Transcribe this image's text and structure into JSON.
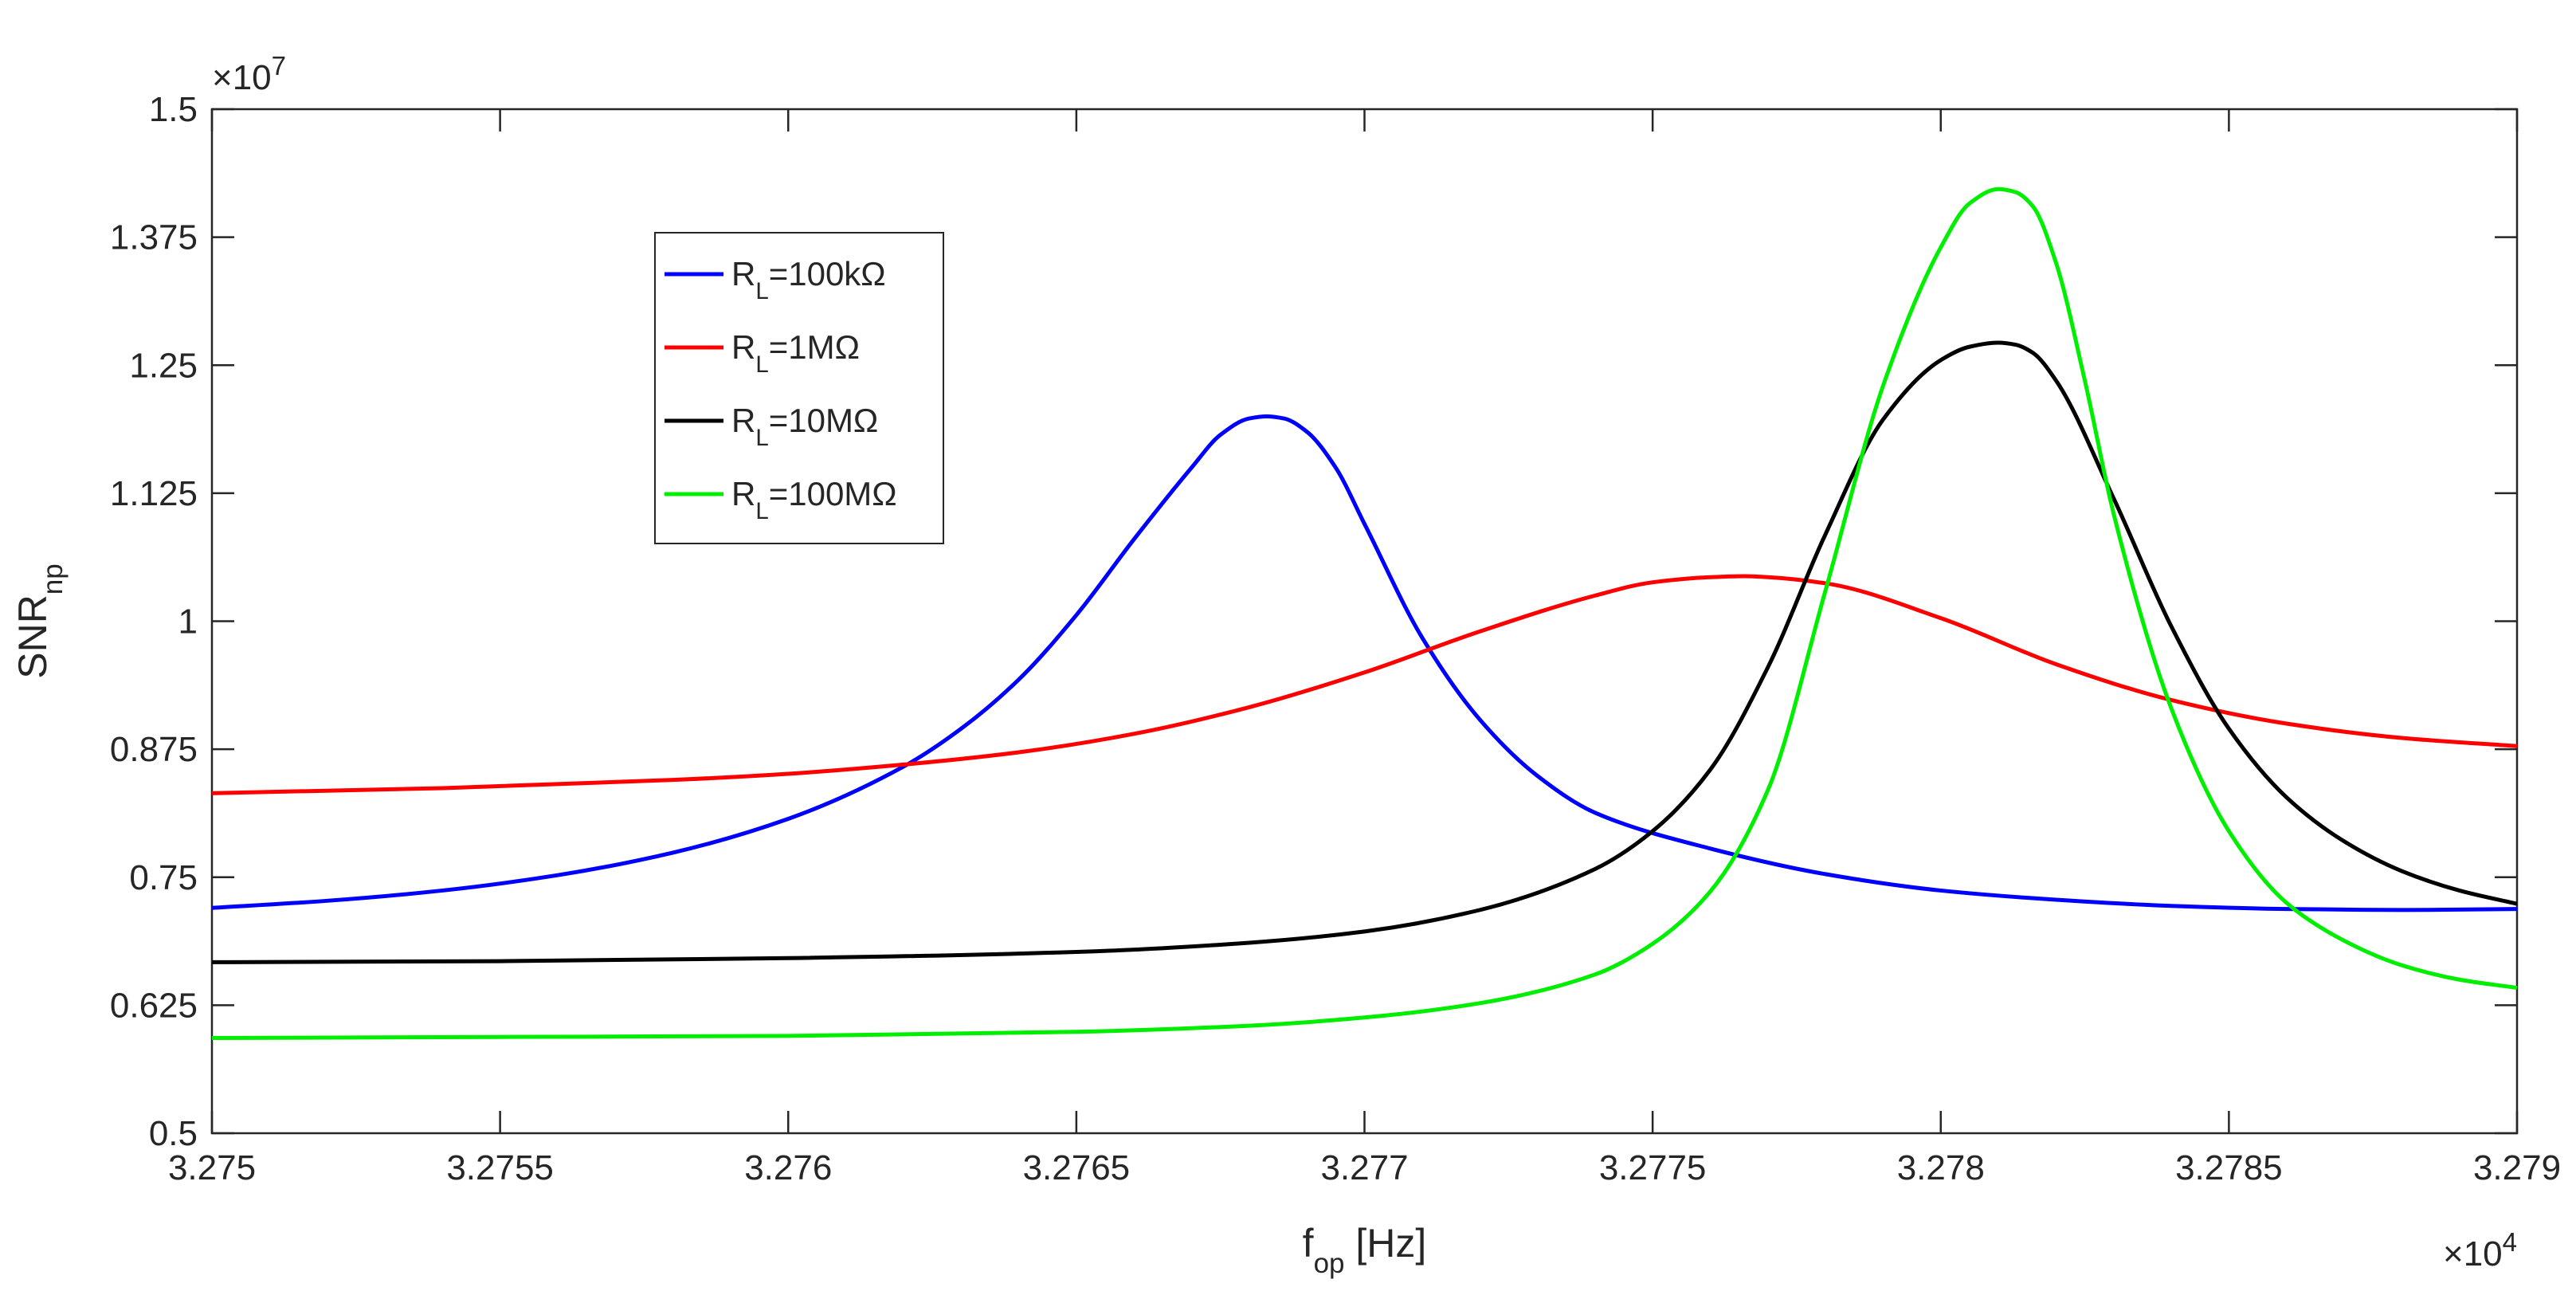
{
  "chart_data": {
    "type": "line",
    "title": "",
    "xlabel": {
      "main": "f",
      "sub": "op",
      "rest": " [Hz]"
    },
    "ylabel": {
      "main": "SNR",
      "sub": "np"
    },
    "x_multiplier": {
      "base": "×10",
      "exp": "4"
    },
    "y_multiplier": {
      "base": "×10",
      "exp": "7"
    },
    "xlim": [
      32750,
      32790
    ],
    "ylim": [
      5000000,
      15000000
    ],
    "x_ticks": [
      32750,
      32755,
      32760,
      32765,
      32770,
      32775,
      32780,
      32785,
      32790
    ],
    "x_tick_labels": [
      "3.275",
      "3.2755",
      "3.276",
      "3.2765",
      "3.277",
      "3.2775",
      "3.278",
      "3.2785",
      "3.279"
    ],
    "y_ticks": [
      5000000,
      6250000,
      7500000,
      8750000,
      10000000,
      11250000,
      12500000,
      13750000,
      15000000
    ],
    "y_tick_labels": [
      "0.5",
      "0.625",
      "0.75",
      "0.875",
      "1",
      "1.125",
      "1.25",
      "1.375",
      "1.5"
    ],
    "grid": false,
    "legend_position": "upper-left",
    "series": [
      {
        "name": "R_L=100kΩ",
        "legend": {
          "main": "R",
          "sub": "L",
          "rest": "=100kΩ"
        },
        "color": "#0000ff",
        "x": [
          32750,
          32752,
          32754,
          32756,
          32758,
          32760,
          32762,
          32763,
          32764,
          32765,
          32766,
          32767,
          32767.5,
          32768,
          32768.3,
          32768.6,
          32769,
          32769.5,
          32770,
          32771,
          32772,
          32773,
          32774,
          32776,
          32778,
          32780,
          32782,
          32784,
          32786,
          32788,
          32790
        ],
        "y": [
          7200000,
          7270000,
          7370000,
          7520000,
          7740000,
          8070000,
          8580000,
          8950000,
          9430000,
          10060000,
          10800000,
          11500000,
          11820000,
          11980000,
          12000000,
          11980000,
          11850000,
          11500000,
          10950000,
          9840000,
          9040000,
          8490000,
          8130000,
          7780000,
          7530000,
          7370000,
          7280000,
          7220000,
          7190000,
          7180000,
          7190000
        ]
      },
      {
        "name": "R_L=1MΩ",
        "legend": {
          "main": "R",
          "sub": "L",
          "rest": "=1MΩ"
        },
        "color": "#ff0000",
        "x": [
          32750,
          32754,
          32758,
          32760,
          32762,
          32764,
          32766,
          32768,
          32770,
          32772,
          32774,
          32775,
          32776,
          32776.6,
          32777,
          32778,
          32780,
          32782,
          32784,
          32786,
          32788,
          32790
        ],
        "y": [
          8320000,
          8370000,
          8450000,
          8510000,
          8600000,
          8720000,
          8900000,
          9160000,
          9500000,
          9900000,
          10250000,
          10380000,
          10430000,
          10440000,
          10430000,
          10370000,
          10030000,
          9580000,
          9230000,
          9000000,
          8860000,
          8780000
        ]
      },
      {
        "name": "R_L=10MΩ",
        "legend": {
          "main": "R",
          "sub": "L",
          "rest": "=10MΩ"
        },
        "color": "#000000",
        "x": [
          32750,
          32755,
          32760,
          32765,
          32768,
          32770,
          32772,
          32774,
          32775,
          32776,
          32777,
          32778,
          32779,
          32780,
          32780.5,
          32781,
          32781.3,
          32781.6,
          32782,
          32783,
          32784,
          32785,
          32786,
          32787,
          32788,
          32789,
          32790
        ],
        "y": [
          6670000,
          6680000,
          6710000,
          6770000,
          6860000,
          6970000,
          7180000,
          7580000,
          7950000,
          8550000,
          9550000,
          10850000,
          11970000,
          12550000,
          12680000,
          12720000,
          12700000,
          12620000,
          12350000,
          11200000,
          9950000,
          8950000,
          8280000,
          7850000,
          7560000,
          7370000,
          7240000
        ]
      },
      {
        "name": "R_L=100MΩ",
        "legend": {
          "main": "R",
          "sub": "L",
          "rest": "=100MΩ"
        },
        "color": "#00ee00",
        "x": [
          32750,
          32755,
          32760,
          32765,
          32768,
          32770,
          32772,
          32774,
          32775,
          32776,
          32777,
          32778,
          32779,
          32780,
          32780.5,
          32781,
          32781.3,
          32781.6,
          32782,
          32782.5,
          32783,
          32784,
          32785,
          32786,
          32787,
          32788,
          32789,
          32790
        ],
        "y": [
          5930000,
          5940000,
          5950000,
          5990000,
          6050000,
          6130000,
          6270000,
          6550000,
          6850000,
          7360000,
          8350000,
          10300000,
          12300000,
          13650000,
          14080000,
          14220000,
          14190000,
          14050000,
          13500000,
          12350000,
          11050000,
          9150000,
          7950000,
          7250000,
          6880000,
          6640000,
          6500000,
          6420000
        ]
      }
    ]
  }
}
